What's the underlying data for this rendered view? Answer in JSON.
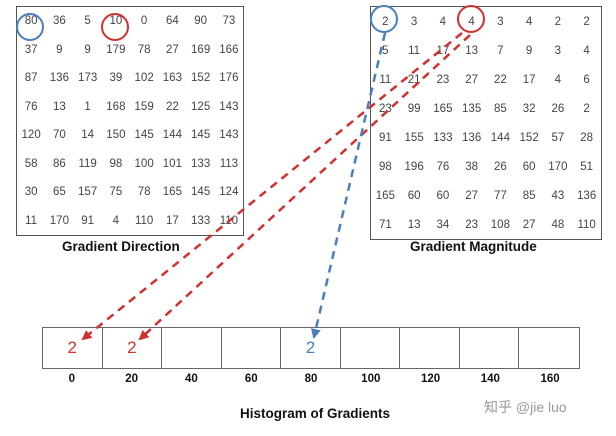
{
  "direction": {
    "caption": "Gradient Direction",
    "rows": [
      [
        "80",
        "36",
        "5",
        "10",
        "0",
        "64",
        "90",
        "73"
      ],
      [
        "37",
        "9",
        "9",
        "179",
        "78",
        "27",
        "169",
        "166"
      ],
      [
        "87",
        "136",
        "173",
        "39",
        "102",
        "163",
        "152",
        "176"
      ],
      [
        "76",
        "13",
        "1",
        "168",
        "159",
        "22",
        "125",
        "143"
      ],
      [
        "120",
        "70",
        "14",
        "150",
        "145",
        "144",
        "145",
        "143"
      ],
      [
        "58",
        "86",
        "119",
        "98",
        "100",
        "101",
        "133",
        "113"
      ],
      [
        "30",
        "65",
        "157",
        "75",
        "78",
        "165",
        "145",
        "124"
      ],
      [
        "11",
        "170",
        "91",
        "4",
        "110",
        "17",
        "133",
        "110"
      ]
    ]
  },
  "magnitude": {
    "caption": "Gradient Magnitude",
    "rows": [
      [
        "2",
        "3",
        "4",
        "4",
        "3",
        "4",
        "2",
        "2"
      ],
      [
        "5",
        "11",
        "17",
        "13",
        "7",
        "9",
        "3",
        "4"
      ],
      [
        "11",
        "21",
        "23",
        "27",
        "22",
        "17",
        "4",
        "6"
      ],
      [
        "23",
        "99",
        "165",
        "135",
        "85",
        "32",
        "26",
        "2"
      ],
      [
        "91",
        "155",
        "133",
        "136",
        "144",
        "152",
        "57",
        "28"
      ],
      [
        "98",
        "196",
        "76",
        "38",
        "26",
        "60",
        "170",
        "51"
      ],
      [
        "165",
        "60",
        "60",
        "27",
        "77",
        "85",
        "43",
        "136"
      ],
      [
        "71",
        "13",
        "34",
        "23",
        "108",
        "27",
        "48",
        "110"
      ]
    ]
  },
  "histogram": {
    "title": "Histogram of Gradients",
    "bin_labels": [
      "0",
      "20",
      "40",
      "60",
      "80",
      "100",
      "120",
      "140",
      "160"
    ],
    "bins": [
      {
        "value": "2",
        "color": "#d0312d"
      },
      {
        "value": "2",
        "color": "#d0312d"
      },
      {
        "value": "",
        "color": "#d0312d"
      },
      {
        "value": "",
        "color": "#d0312d"
      },
      {
        "value": "2",
        "color": "#4a7ec0"
      },
      {
        "value": "",
        "color": "#d0312d"
      },
      {
        "value": "",
        "color": "#d0312d"
      },
      {
        "value": "",
        "color": "#d0312d"
      },
      {
        "value": "",
        "color": "#d0312d"
      }
    ]
  },
  "colors": {
    "red": "#d0312d",
    "blue": "#4a7ec0"
  },
  "watermark": "知乎 @jie luo"
}
